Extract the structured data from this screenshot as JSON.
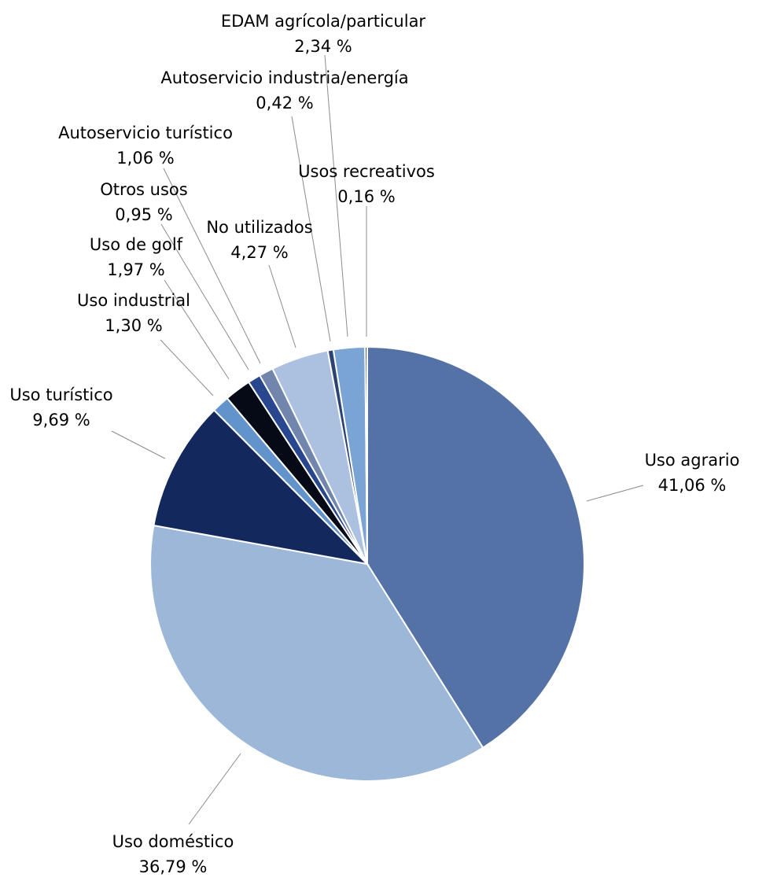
{
  "chart_data": {
    "type": "pie",
    "title": "",
    "unit_suffix": " %",
    "slices": [
      {
        "label": "Uso agrario",
        "value": 41.06,
        "value_text": "41,06",
        "color": "#5572a6"
      },
      {
        "label": "Uso doméstico",
        "value": 36.79,
        "value_text": "36,79",
        "color": "#9cb7d7"
      },
      {
        "label": "Uso turístico",
        "value": 9.69,
        "value_text": "9,69",
        "color": "#13295e"
      },
      {
        "label": "Uso industrial",
        "value": 1.3,
        "value_text": "1,30",
        "color": "#6393cb"
      },
      {
        "label": "Uso de golf",
        "value": 1.97,
        "value_text": "1,97",
        "color": "#050a16"
      },
      {
        "label": "Otros usos",
        "value": 0.95,
        "value_text": "0,95",
        "color": "#29478f"
      },
      {
        "label": "Autoservicio turístico",
        "value": 1.06,
        "value_text": "1,06",
        "color": "#7285ad"
      },
      {
        "label": "No utilizados",
        "value": 4.27,
        "value_text": "4,27",
        "color": "#acc1df"
      },
      {
        "label": "Autoservicio industria/energía",
        "value": 0.42,
        "value_text": "0,42",
        "color": "#2c4475"
      },
      {
        "label": "EDAM agrícola/particular",
        "value": 2.34,
        "value_text": "2,34",
        "color": "#7aa4d3"
      },
      {
        "label": "Usos recreativos",
        "value": 0.16,
        "value_text": "0,16",
        "color": "#0f1e3d"
      }
    ]
  }
}
